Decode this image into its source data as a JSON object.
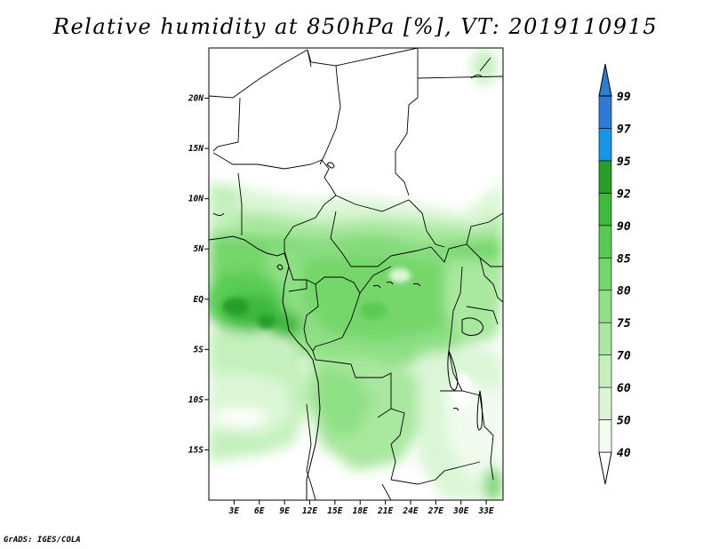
{
  "title": "Relative humidity at 850hPa [%], VT: 2019110915",
  "credit": "GrADS: IGES/COLA",
  "map": {
    "lon_range": [
      0,
      35
    ],
    "lat_range": [
      -20,
      25
    ],
    "lon_ticks": [
      "3E",
      "6E",
      "9E",
      "12E",
      "15E",
      "18E",
      "21E",
      "24E",
      "27E",
      "30E",
      "33E"
    ],
    "lon_tick_values": [
      3,
      6,
      9,
      12,
      15,
      18,
      21,
      24,
      27,
      30,
      33
    ],
    "lat_ticks": [
      "20N",
      "15N",
      "10N",
      "5N",
      "EQ",
      "5S",
      "10S",
      "15S"
    ],
    "lat_tick_values": [
      20,
      15,
      10,
      5,
      0,
      -5,
      -10,
      -15
    ]
  },
  "colorbar": {
    "levels": [
      "40",
      "50",
      "60",
      "70",
      "75",
      "80",
      "85",
      "90",
      "92",
      "95",
      "97",
      "99"
    ],
    "colors": [
      "#f0fcee",
      "#dbf6d6",
      "#c3f0bb",
      "#a9e89f",
      "#8fe085",
      "#74d66b",
      "#58cc52",
      "#3eb83d",
      "#279f2a",
      "#1596e8",
      "#2f7ad8",
      "#1c5fc4",
      "#2a7fd0"
    ]
  },
  "chart_data": {
    "type": "heatmap",
    "title": "Relative humidity at 850hPa [%], VT: 2019110915",
    "variable_levels": [
      40,
      50,
      60,
      70,
      75,
      80,
      85,
      90,
      92,
      95,
      97,
      99
    ],
    "x_ticks": [
      "3E",
      "6E",
      "9E",
      "12E",
      "15E",
      "18E",
      "21E",
      "24E",
      "27E",
      "30E",
      "33E"
    ],
    "y_ticks": [
      "20N",
      "15N",
      "10N",
      "5N",
      "EQ",
      "5S",
      "10S",
      "15S"
    ],
    "xlim": [
      0,
      35
    ],
    "ylim": [
      -20,
      25
    ],
    "regions": [
      {
        "lon": [
          0,
          35
        ],
        "lat": [
          8,
          25
        ],
        "rh_min": 0,
        "rh_max": 40
      },
      {
        "lon": [
          0,
          35
        ],
        "lat": [
          2,
          8
        ],
        "rh_min": 70,
        "rh_max": 85
      },
      {
        "lon": [
          2,
          9
        ],
        "lat": [
          -3,
          1
        ],
        "rh_min": 85,
        "rh_max": 92
      },
      {
        "lon": [
          10,
          28
        ],
        "lat": [
          -6,
          3
        ],
        "rh_min": 75,
        "rh_max": 85
      },
      {
        "lon": [
          0,
          25
        ],
        "lat": [
          -14,
          -6
        ],
        "rh_min": 50,
        "rh_max": 70
      },
      {
        "lon": [
          22,
          35
        ],
        "lat": [
          -20,
          -6
        ],
        "rh_min": 40,
        "rh_max": 60
      }
    ]
  }
}
